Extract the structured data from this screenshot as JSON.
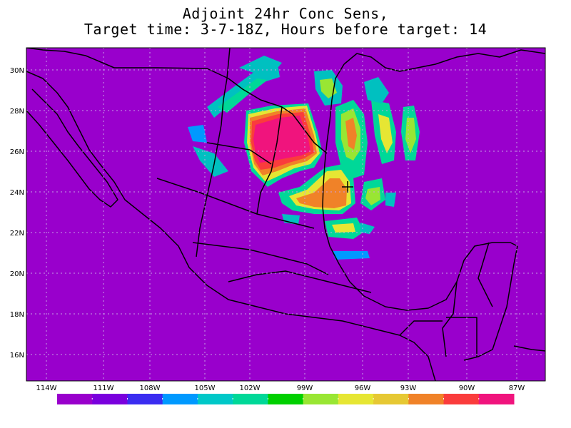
{
  "title": {
    "line1": "Adjoint 24hr Conc Sens,",
    "line2": "Target time: 3-7-18Z, Hours before target: 14"
  },
  "map": {
    "background_color": "#9900cc",
    "lat_labels": [
      "30N",
      "28N",
      "26N",
      "24N",
      "22N",
      "20N",
      "18N",
      "16N"
    ],
    "lon_labels": [
      "114W",
      "111W",
      "108W",
      "105W",
      "102W",
      "99W",
      "96W",
      "93W",
      "90W",
      "87W"
    ],
    "target_marker": "crosshair-plus"
  },
  "colorbar": {
    "colors": [
      "#9900cc",
      "#7a00dd",
      "#3a2cf0",
      "#0099ff",
      "#00c8c8",
      "#00d898",
      "#00d000",
      "#99e633",
      "#e6e633",
      "#e6c833",
      "#f08228",
      "#fa3c3c",
      "#f0147d"
    ]
  }
}
